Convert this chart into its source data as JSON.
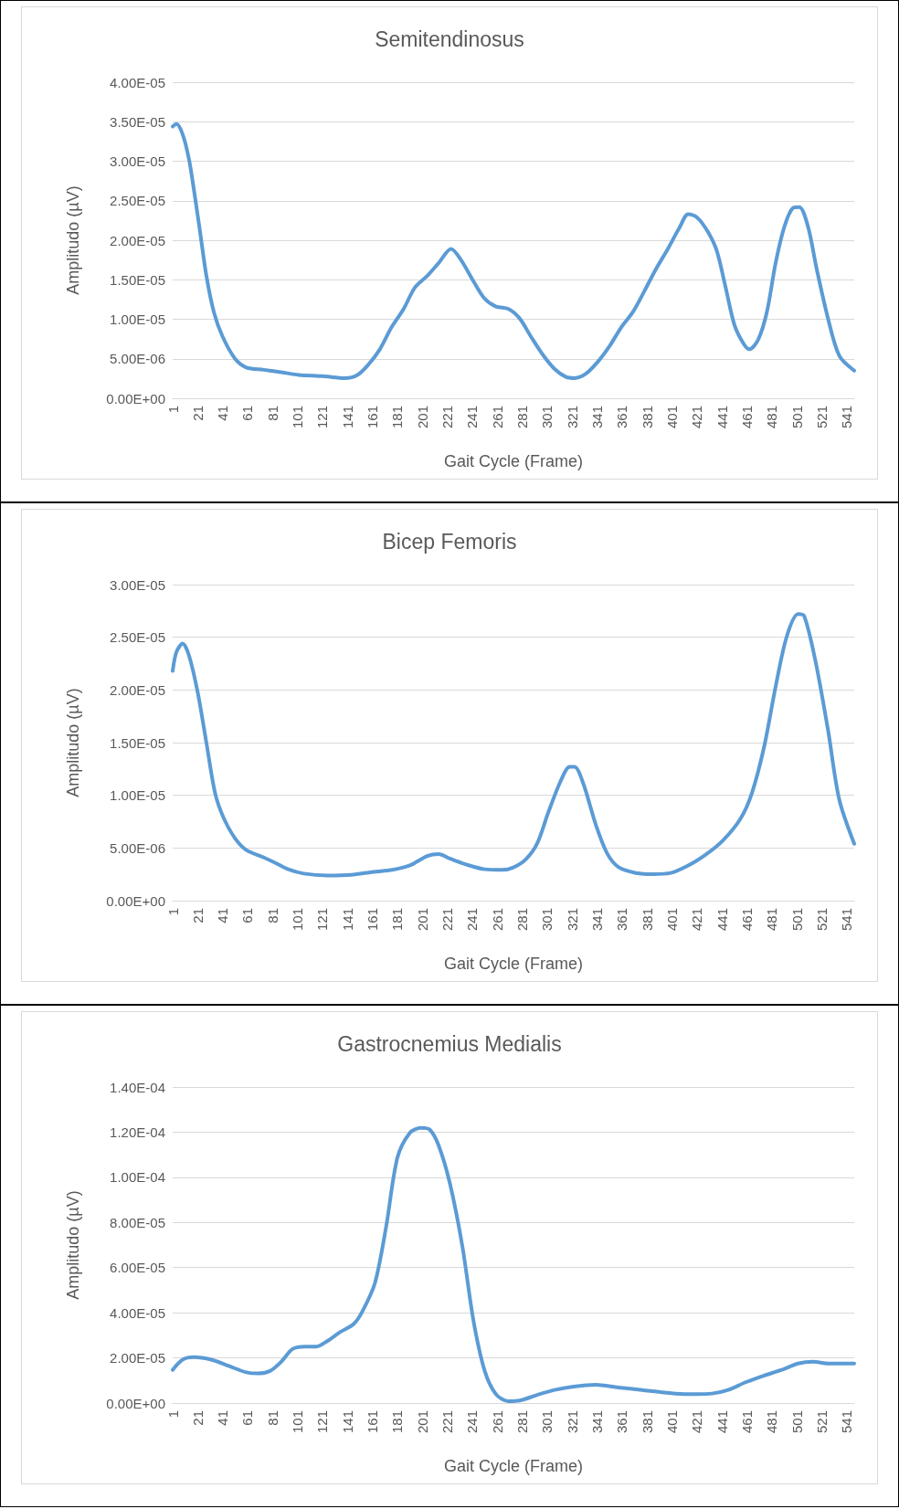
{
  "chart_data": [
    {
      "type": "line",
      "title": "Semitendinosus",
      "xlabel": "Gait Cycle (Frame)",
      "ylabel": "Amplitudo (µV)",
      "grid": "y",
      "marker": "none",
      "line_style": "solid",
      "xlim": [
        1,
        547
      ],
      "xticks": [
        1,
        21,
        41,
        61,
        81,
        101,
        121,
        141,
        161,
        181,
        201,
        221,
        241,
        261,
        281,
        301,
        321,
        341,
        361,
        381,
        401,
        421,
        441,
        461,
        481,
        501,
        521,
        541
      ],
      "ylim": [
        0,
        4e-05
      ],
      "yticks": [
        {
          "value": 0,
          "label": "0.00E+00"
        },
        {
          "value": 5e-06,
          "label": "5.00E-06"
        },
        {
          "value": 1e-05,
          "label": "1.00E-05"
        },
        {
          "value": 1.5e-05,
          "label": "1.50E-05"
        },
        {
          "value": 2e-05,
          "label": "2.00E-05"
        },
        {
          "value": 2.5e-05,
          "label": "2.50E-05"
        },
        {
          "value": 3e-05,
          "label": "3.00E-05"
        },
        {
          "value": 3.5e-05,
          "label": "3.50E-05"
        },
        {
          "value": 4e-05,
          "label": "4.00E-05"
        }
      ],
      "series": [
        {
          "color": "#5b9bd5",
          "x": [
            1,
            4,
            9,
            14,
            18,
            23,
            28,
            34,
            41,
            51,
            60,
            74,
            88,
            102,
            121,
            139,
            149,
            158,
            167,
            176,
            186,
            195,
            205,
            214,
            224,
            232,
            242,
            251,
            260,
            270,
            279,
            288,
            298,
            307,
            316,
            323,
            332,
            342,
            351,
            360,
            370,
            379,
            388,
            398,
            407,
            414,
            421,
            430,
            437,
            444,
            451,
            458,
            463,
            470,
            477,
            484,
            491,
            498,
            503,
            510,
            517,
            526,
            535,
            547
          ],
          "values": [
            3.44e-05,
            3.47e-05,
            3.34e-05,
            3.03e-05,
            2.64e-05,
            2.1e-05,
            1.55e-05,
            1.09e-05,
            7.8e-06,
            5e-06,
            3.9e-06,
            3.6e-06,
            3.3e-06,
            2.95e-06,
            2.8e-06,
            2.55e-06,
            2.95e-06,
            4.3e-06,
            6.2e-06,
            8.9e-06,
            1.13e-05,
            1.4e-05,
            1.55e-05,
            1.71e-05,
            1.89e-05,
            1.75e-05,
            1.48e-05,
            1.26e-05,
            1.16e-05,
            1.13e-05,
            1.01e-05,
            7.8e-06,
            5.4e-06,
            3.7e-06,
            2.7e-06,
            2.55e-06,
            3.1e-06,
            4.7e-06,
            6.6e-06,
            8.9e-06,
            1.1e-05,
            1.36e-05,
            1.63e-05,
            1.9e-05,
            2.16e-05,
            2.33e-05,
            2.29e-05,
            2.1e-05,
            1.86e-05,
            1.4e-05,
            9.3e-06,
            7e-06,
            6.2e-06,
            7.4e-06,
            1.09e-05,
            1.71e-05,
            2.17e-05,
            2.41e-05,
            2.42e-05,
            2.17e-05,
            1.63e-05,
            1.01e-05,
            5.4e-06,
            3.5e-06
          ]
        }
      ]
    },
    {
      "type": "line",
      "title": "Bicep Femoris",
      "xlabel": "Gait Cycle (Frame)",
      "ylabel": "Amplitudo (µV)",
      "grid": "y",
      "marker": "none",
      "line_style": "solid",
      "xlim": [
        1,
        547
      ],
      "xticks": [
        1,
        21,
        41,
        61,
        81,
        101,
        121,
        141,
        161,
        181,
        201,
        221,
        241,
        261,
        281,
        301,
        321,
        341,
        361,
        381,
        401,
        421,
        441,
        461,
        481,
        501,
        521,
        541
      ],
      "ylim": [
        0,
        3e-05
      ],
      "yticks": [
        {
          "value": 0,
          "label": "0.00E+00"
        },
        {
          "value": 5e-06,
          "label": "5.00E-06"
        },
        {
          "value": 1e-05,
          "label": "1.00E-05"
        },
        {
          "value": 1.5e-05,
          "label": "1.50E-05"
        },
        {
          "value": 2e-05,
          "label": "2.00E-05"
        },
        {
          "value": 2.5e-05,
          "label": "2.50E-05"
        },
        {
          "value": 3e-05,
          "label": "3.00E-05"
        }
      ],
      "series": [
        {
          "color": "#5b9bd5",
          "x": [
            1,
            4,
            9,
            14,
            21,
            28,
            35,
            42,
            51,
            60,
            74,
            83,
            93,
            106,
            125,
            144,
            162,
            177,
            191,
            205,
            214,
            223,
            237,
            251,
            265,
            274,
            284,
            293,
            302,
            312,
            319,
            323,
            330,
            340,
            349,
            358,
            372,
            386,
            400,
            414,
            428,
            442,
            456,
            465,
            475,
            484,
            493,
            502,
            507,
            516,
            526,
            535,
            547
          ],
          "values": [
            2.18e-05,
            2.36e-05,
            2.44e-05,
            2.33e-05,
            1.98e-05,
            1.5e-05,
            1.02e-05,
            7.8e-06,
            5.9e-06,
            4.8e-06,
            4.1e-06,
            3.6e-06,
            3e-06,
            2.57e-06,
            2.39e-06,
            2.45e-06,
            2.74e-06,
            2.92e-06,
            3.34e-06,
            4.24e-06,
            4.42e-06,
            4e-06,
            3.4e-06,
            2.98e-06,
            2.92e-06,
            3.16e-06,
            3.94e-06,
            5.43e-06,
            8.41e-06,
            1.14e-05,
            1.27e-05,
            1.27e-05,
            1.11e-05,
            7.2e-06,
            4.5e-06,
            3.2e-06,
            2.63e-06,
            2.51e-06,
            2.63e-06,
            3.34e-06,
            4.36e-06,
            5.73e-06,
            7.8e-06,
            1.02e-05,
            1.47e-05,
            2.03e-05,
            2.51e-05,
            2.72e-05,
            2.7e-05,
            2.27e-05,
            1.62e-05,
            9.6e-06,
            5.4e-06
          ]
        }
      ]
    },
    {
      "type": "line",
      "title": "Gastrocnemius Medialis",
      "xlabel": "Gait Cycle (Frame)",
      "ylabel": "Amplitudo (µV)",
      "grid": "y",
      "marker": "none",
      "line_style": "solid",
      "xlim": [
        1,
        547
      ],
      "xticks": [
        1,
        21,
        41,
        61,
        81,
        101,
        121,
        141,
        161,
        181,
        201,
        221,
        241,
        261,
        281,
        301,
        321,
        341,
        361,
        381,
        401,
        421,
        441,
        461,
        481,
        501,
        521,
        541
      ],
      "ylim": [
        0,
        0.00014
      ],
      "yticks": [
        {
          "value": 0,
          "label": "0.00E+00"
        },
        {
          "value": 2e-05,
          "label": "2.00E-05"
        },
        {
          "value": 4e-05,
          "label": "4.00E-05"
        },
        {
          "value": 6e-05,
          "label": "6.00E-05"
        },
        {
          "value": 8e-05,
          "label": "8.00E-05"
        },
        {
          "value": 0.0001,
          "label": "1.00E-04"
        },
        {
          "value": 0.00012,
          "label": "1.20E-04"
        },
        {
          "value": 0.00014,
          "label": "1.40E-04"
        }
      ],
      "series": [
        {
          "color": "#5b9bd5",
          "x": [
            1,
            9,
            18,
            32,
            46,
            60,
            69,
            79,
            88,
            97,
            107,
            116,
            125,
            135,
            146,
            153,
            163,
            172,
            181,
            191,
            200,
            207,
            214,
            223,
            233,
            242,
            251,
            260,
            270,
            279,
            293,
            307,
            321,
            340,
            358,
            377,
            395,
            414,
            433,
            446,
            460,
            475,
            489,
            502,
            514,
            526,
            547
          ],
          "values": [
            1.47e-05,
            1.92e-05,
            2.03e-05,
            1.92e-05,
            1.64e-05,
            1.36e-05,
            1.31e-05,
            1.42e-05,
            1.83e-05,
            2.39e-05,
            2.5e-05,
            2.5e-05,
            2.75e-05,
            3.14e-05,
            3.5e-05,
            4.06e-05,
            5.31e-05,
            7.81e-05,
            0.0001086,
            0.0001197,
            0.0001219,
            0.0001211,
            0.0001142,
            9.75e-05,
            6.97e-05,
            3.64e-05,
            1.42e-05,
            3.9e-06,
            8e-07,
            1.1e-06,
            3.6e-06,
            5.8e-06,
            7.2e-06,
            8.1e-06,
            6.9e-06,
            5.8e-06,
            4.7e-06,
            3.9e-06,
            4.2e-06,
            5.8e-06,
            9.2e-06,
            1.22e-05,
            1.47e-05,
            1.75e-05,
            1.83e-05,
            1.75e-05,
            1.75e-05
          ]
        }
      ]
    }
  ]
}
